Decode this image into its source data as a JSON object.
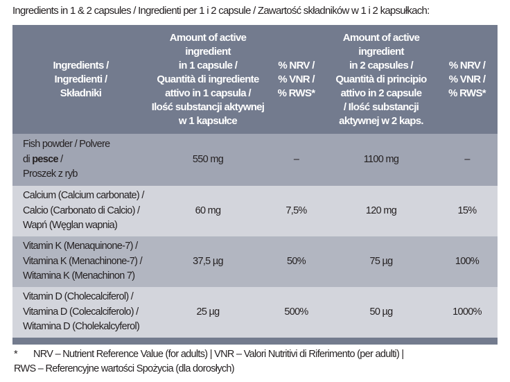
{
  "title": "Ingredients in 1 & 2 capsules / Ingredienti per 1 i 2 capsule / Zawartość składników w 1 i 2 kapsułkach:",
  "table": {
    "headers": [
      [
        "Ingredients /",
        "Ingredienti /",
        "Składniki"
      ],
      [
        "Amount of active",
        "ingredient",
        "in 1 capsule /",
        "Quantità di ingrediente",
        "attivo in 1 capsula /",
        "Ilość substancji aktywnej",
        "w 1 kapsułce"
      ],
      [
        "% NRV /",
        "% VNR /",
        "% RWS*"
      ],
      [
        "Amount of active",
        "ingredient",
        "in 2 capsules /",
        "Quantità di principio",
        "attivo in 2 capsule",
        "/ Ilość substancji",
        "aktywnej w 2 kaps."
      ],
      [
        "% NRV /",
        "% VNR /",
        "% RWS*"
      ]
    ],
    "rows": [
      {
        "ingredient": [
          "Fish powder / Polvere",
          "di ",
          "pesce",
          " /",
          "Proszek z ryb"
        ],
        "amount1": "550 mg",
        "nrv1": "–",
        "amount2": "1100 mg",
        "nrv2": "–"
      },
      {
        "ingredient": [
          "Calcium (Calcium carbonate) /",
          "Calcio (Carbonato di Calcio) /",
          "Wapń (Węglan wapnia)"
        ],
        "amount1": "60 mg",
        "nrv1": "7,5%",
        "amount2": "120 mg",
        "nrv2": "15%"
      },
      {
        "ingredient": [
          "Vitamin K (Menaquinone-7) /",
          "Vitamina K (Menachinone-7) /",
          "Witamina K (Menachinon 7)"
        ],
        "amount1": "37,5 µg",
        "nrv1": "50%",
        "amount2": "75 µg",
        "nrv2": "100%"
      },
      {
        "ingredient": [
          "Vitamin D (Cholecalciferol) /",
          "Vitamina D (Colecalciferolo) /",
          "Witamina D (Cholekalcyferol)"
        ],
        "amount1": "25 µg",
        "nrv1": "500%",
        "amount2": "50 µg",
        "nrv2": "1000%"
      }
    ]
  },
  "footnote": {
    "marker": "*",
    "line1": "NRV – Nutrient Reference Value (for adults) | VNR – Valori Nutritivi di Riferimento (per adulti) |",
    "line2": "RWS – Referencyjne wartości Spożycia (dla dorosłych)"
  },
  "colors": {
    "header": "#737b8e",
    "row_dark": "#a0a5b3",
    "row_light": "#d3d5dc",
    "row_mid": "#b2b6c1"
  }
}
